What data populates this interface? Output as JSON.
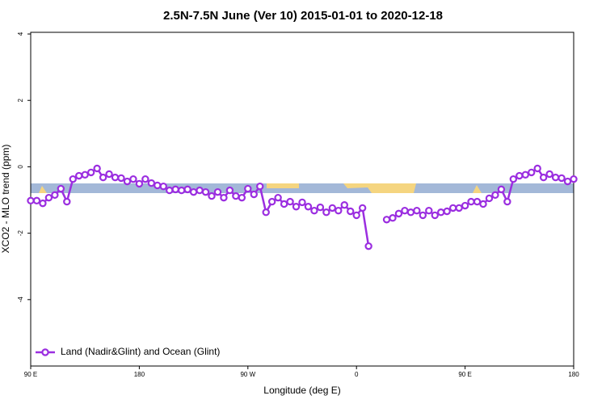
{
  "chart_data": {
    "type": "line",
    "title": "2.5N-7.5N June (Ver 10)   2015-01-01 to 2020-12-18",
    "xlabel": "Longitude (deg E)",
    "ylabel": "XCO2 - MLO trend (ppm)",
    "xlim": [
      90,
      540
    ],
    "ylim": [
      -6,
      4.05
    ],
    "xticks": [
      {
        "value": 90,
        "label": "90 E"
      },
      180,
      {
        "value": 270,
        "label": "90 W"
      },
      {
        "value": 360,
        "label": "0"
      },
      {
        "value": 450,
        "label": "90 E"
      },
      {
        "value": 540,
        "label": "180"
      }
    ],
    "yticks": [
      -4,
      -2,
      0,
      2,
      4
    ],
    "legend": "bottom-left",
    "x": [
      90,
      95,
      100,
      105,
      110,
      115,
      120,
      125,
      130,
      135,
      140,
      145,
      150,
      155,
      160,
      165,
      170,
      175,
      180,
      185,
      190,
      195,
      200,
      205,
      210,
      215,
      220,
      225,
      230,
      235,
      240,
      245,
      250,
      255,
      260,
      265,
      270,
      275,
      280,
      285,
      290,
      295,
      300,
      305,
      310,
      315,
      320,
      325,
      330,
      335,
      340,
      345,
      350,
      355,
      360,
      365,
      370,
      375,
      380,
      385,
      390,
      395,
      400,
      405,
      410,
      415,
      420,
      425,
      430,
      435,
      440,
      445,
      450,
      455,
      460,
      465,
      470,
      475,
      480,
      485,
      490,
      495,
      500,
      505,
      510,
      515,
      520,
      525,
      530,
      535,
      540
    ],
    "series": [
      {
        "name": "Land (Nadir&Glint) and Ocean (Glint)",
        "color": "#9b2ee0",
        "values": [
          -1.02,
          -1.02,
          -1.1,
          -0.93,
          -0.85,
          -0.66,
          -1.05,
          -0.37,
          -0.27,
          -0.24,
          -0.17,
          -0.05,
          -0.32,
          -0.22,
          -0.32,
          -0.34,
          -0.44,
          -0.37,
          -0.51,
          -0.37,
          -0.49,
          -0.56,
          -0.59,
          -0.71,
          -0.68,
          -0.71,
          -0.68,
          -0.76,
          -0.71,
          -0.76,
          -0.88,
          -0.76,
          -0.93,
          -0.71,
          -0.88,
          -0.93,
          -0.66,
          -0.83,
          -0.59,
          -1.37,
          -1.05,
          -0.93,
          -1.12,
          -1.05,
          -1.2,
          -1.07,
          -1.2,
          -1.32,
          -1.22,
          -1.37,
          -1.24,
          -1.32,
          -1.15,
          -1.34,
          -1.46,
          -1.24,
          -2.39,
          null,
          null,
          -1.59,
          -1.54,
          -1.41,
          -1.32,
          -1.37,
          -1.32,
          -1.46,
          -1.32,
          -1.46,
          -1.37,
          -1.34,
          -1.24,
          -1.24,
          -1.17,
          -1.05,
          -1.05,
          -1.12,
          -0.95,
          -0.85,
          -0.68,
          -1.05,
          -0.37,
          -0.27,
          -0.24,
          -0.17,
          -0.05,
          -0.32,
          -0.22,
          -0.32,
          -0.34,
          -0.44,
          -0.37
        ]
      }
    ]
  }
}
